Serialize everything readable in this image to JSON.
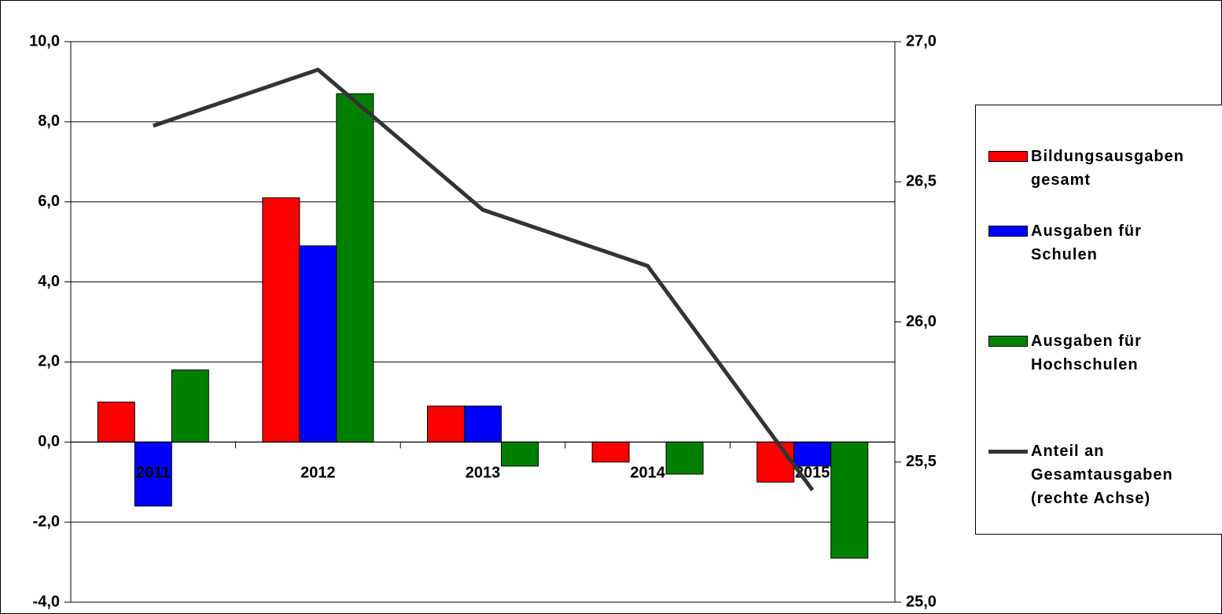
{
  "chart_data": {
    "type": "bar",
    "categories": [
      "2011",
      "2012",
      "2013",
      "2014",
      "2015"
    ],
    "series": [
      {
        "name": "Bildungsausgaben gesamt",
        "color": "#ff0000",
        "values": [
          1.0,
          6.1,
          0.9,
          -0.5,
          -1.0
        ]
      },
      {
        "name": "Ausgaben für Schulen",
        "color": "#0000ff",
        "values": [
          -1.6,
          4.9,
          0.9,
          0.0,
          -0.6
        ]
      },
      {
        "name": "Ausgaben für Hochschulen",
        "color": "#008000",
        "values": [
          1.8,
          8.7,
          -0.6,
          -0.8,
          -2.9
        ]
      },
      {
        "name": "Anteil an Gesamtausgaben (rechte Achse)",
        "color": "#333333",
        "type": "line",
        "axis": "y2",
        "values": [
          26.7,
          26.9,
          26.4,
          26.2,
          25.4
        ]
      }
    ],
    "ylim": [
      -4,
      10
    ],
    "yticks": [
      {
        "value": -4,
        "label": "-4,0"
      },
      {
        "value": -2,
        "label": "-2,0"
      },
      {
        "value": 0,
        "label": "0,0"
      },
      {
        "value": 2,
        "label": "2,0"
      },
      {
        "value": 4,
        "label": "4,0"
      },
      {
        "value": 6,
        "label": "6,0"
      },
      {
        "value": 8,
        "label": "8,0"
      },
      {
        "value": 10,
        "label": "10,0"
      }
    ],
    "y2lim": [
      25,
      27
    ],
    "y2ticks": [
      {
        "value": 25,
        "label": "25,0"
      },
      {
        "value": 25.5,
        "label": "25,5"
      },
      {
        "value": 26,
        "label": "26,0"
      },
      {
        "value": 26.5,
        "label": "26,5"
      },
      {
        "value": 27,
        "label": "27,0"
      }
    ],
    "grid": true,
    "legend": "right"
  }
}
